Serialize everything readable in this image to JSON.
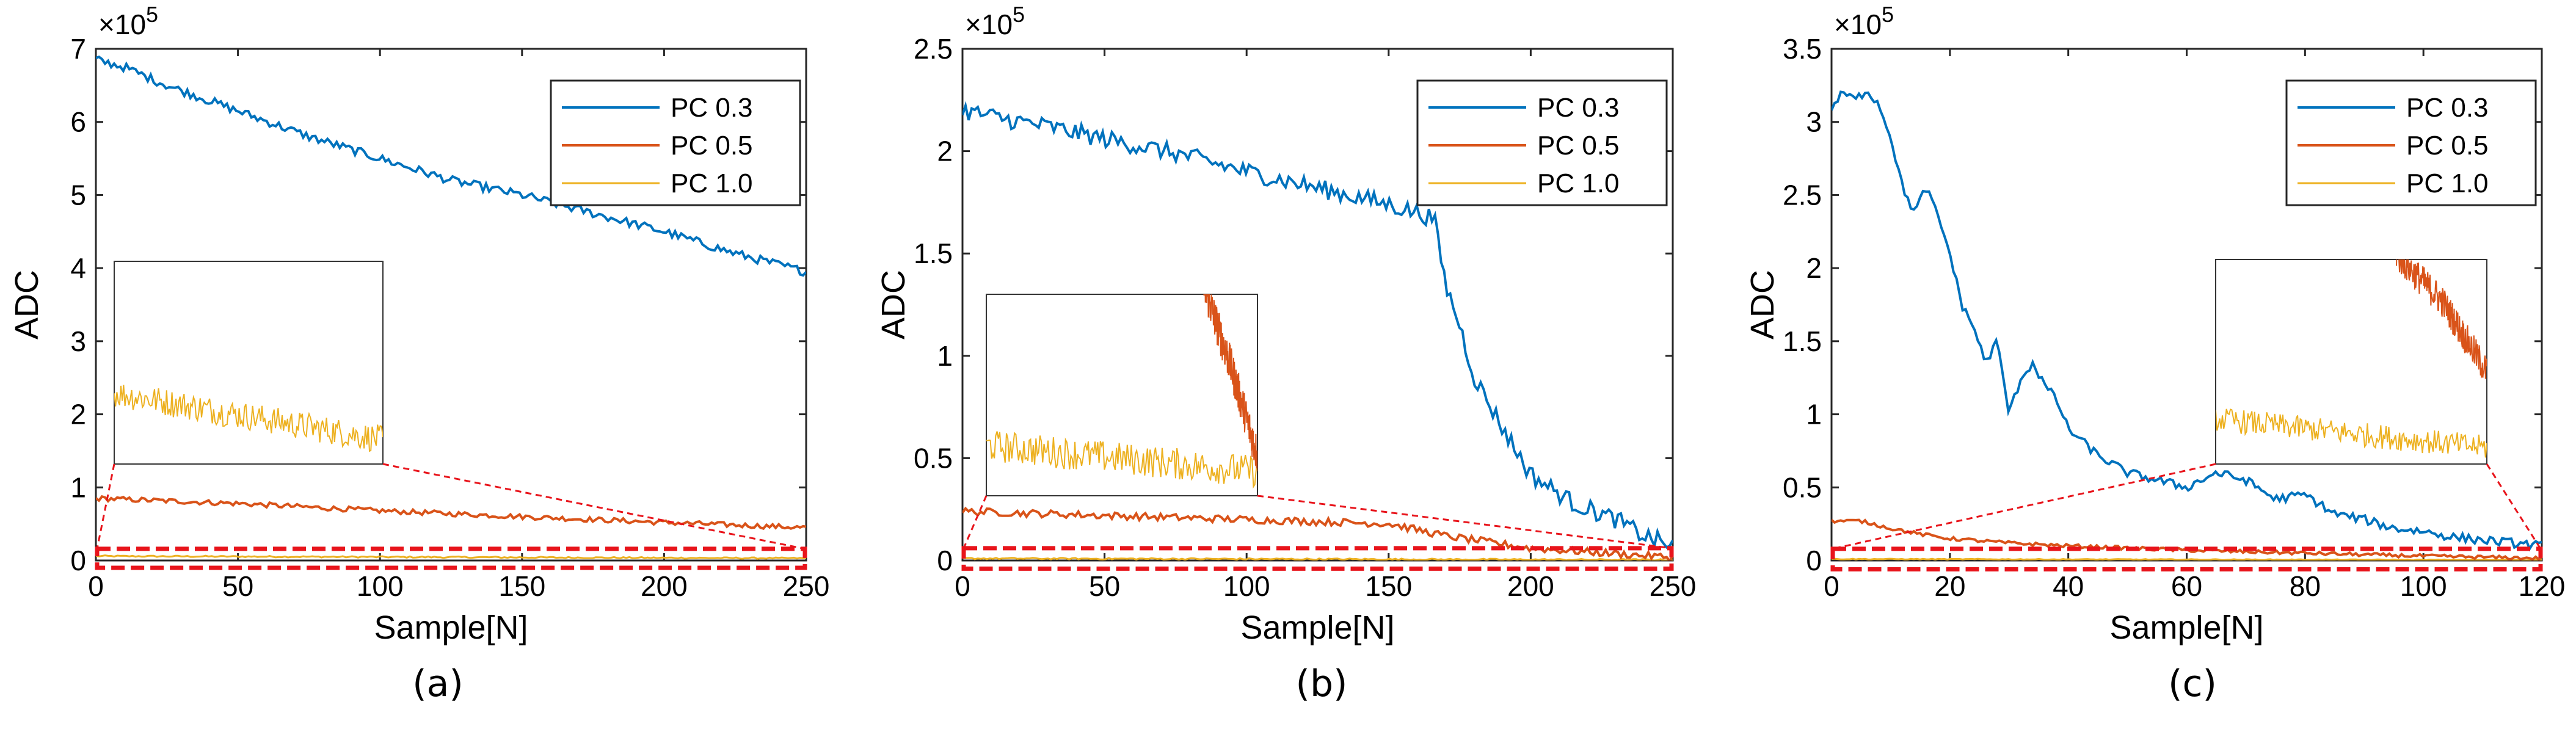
{
  "figure_title": "",
  "series_colors": {
    "PC 0.3": "#0072BD",
    "PC 0.5": "#D95319",
    "PC 1.0": "#EDB120"
  },
  "highlight_color": "#E8141B",
  "chart_data": [
    {
      "type": "line",
      "panel": "(a)",
      "xlabel": "Sample[N]",
      "ylabel": "ADC",
      "y_exponent_label": "×10",
      "y_exponent_power": "5",
      "xlim": [
        0,
        250
      ],
      "ylim": [
        0,
        7
      ],
      "xticks": [
        0,
        50,
        100,
        150,
        200,
        250
      ],
      "yticks": [
        0,
        1,
        2,
        3,
        4,
        5,
        6,
        7
      ],
      "xtick_labels": [
        "0",
        "50",
        "100",
        "150",
        "200",
        "250"
      ],
      "ytick_labels": [
        "0",
        "1",
        "2",
        "3",
        "4",
        "5",
        "6",
        "7"
      ],
      "legend": [
        "PC 0.3",
        "PC 0.5",
        "PC 1.0"
      ],
      "legend_position": "top-right",
      "series": [
        {
          "name": "PC 0.3",
          "x": [
            0,
            10,
            25,
            50,
            75,
            100,
            125,
            150,
            175,
            200,
            225,
            250
          ],
          "values": [
            6.85,
            6.75,
            6.5,
            6.15,
            5.8,
            5.5,
            5.2,
            5.0,
            4.75,
            4.5,
            4.2,
            3.95
          ],
          "noise": 0.06
        },
        {
          "name": "PC 0.5",
          "x": [
            0,
            50,
            100,
            150,
            200,
            250
          ],
          "values": [
            0.85,
            0.78,
            0.68,
            0.6,
            0.52,
            0.45
          ],
          "noise": 0.035
        },
        {
          "name": "PC 1.0",
          "x": [
            0,
            250
          ],
          "values": [
            0.06,
            0.03
          ],
          "noise": 0.01
        }
      ],
      "inset": {
        "label": "zoom of highlighted band",
        "xlim": [
          0,
          250
        ],
        "ylim": [
          0,
          1
        ],
        "series": [
          {
            "name": "PC 1.0",
            "x": [
              0,
              250
            ],
            "values": [
              0.35,
              0.12
            ],
            "noise": 0.07
          }
        ]
      },
      "highlight_band_y": [
        -0.1,
        0.16
      ]
    },
    {
      "type": "line",
      "panel": "(b)",
      "xlabel": "Sample[N]",
      "ylabel": "ADC",
      "y_exponent_label": "×10",
      "y_exponent_power": "5",
      "xlim": [
        0,
        250
      ],
      "ylim": [
        0,
        2.5
      ],
      "xticks": [
        0,
        50,
        100,
        150,
        200,
        250
      ],
      "yticks": [
        0,
        0.5,
        1,
        1.5,
        2,
        2.5
      ],
      "xtick_labels": [
        "0",
        "50",
        "100",
        "150",
        "200",
        "250"
      ],
      "ytick_labels": [
        "0",
        "0.5",
        "1",
        "1.5",
        "2",
        "2.5"
      ],
      "legend": [
        "PC 0.3",
        "PC 0.5",
        "PC 1.0"
      ],
      "legend_position": "top-right",
      "series": [
        {
          "name": "PC 0.3",
          "x": [
            0,
            10,
            30,
            50,
            75,
            100,
            125,
            150,
            160,
            166,
            170,
            175,
            180,
            190,
            200,
            215,
            230,
            240,
            250
          ],
          "values": [
            2.2,
            2.17,
            2.12,
            2.06,
            1.99,
            1.9,
            1.82,
            1.74,
            1.7,
            1.67,
            1.35,
            1.15,
            0.9,
            0.65,
            0.42,
            0.28,
            0.2,
            0.12,
            0.07
          ],
          "noise": 0.045
        },
        {
          "name": "PC 0.5",
          "x": [
            0,
            50,
            100,
            150,
            170,
            200,
            250
          ],
          "values": [
            0.24,
            0.22,
            0.2,
            0.18,
            0.12,
            0.06,
            0.015
          ],
          "noise": 0.018
        },
        {
          "name": "PC 1.0",
          "x": [
            0,
            250
          ],
          "values": [
            0.01,
            0.003
          ],
          "noise": 0.004
        }
      ],
      "inset": {
        "label": "zoom of highlighted band",
        "xlim": [
          0,
          250
        ],
        "ylim": [
          0,
          1
        ],
        "series": [
          {
            "name": "PC 1.0",
            "x": [
              0,
              250
            ],
            "values": [
              0.25,
              0.12
            ],
            "noise": 0.08
          },
          {
            "name": "PC 0.5",
            "x": [
              200,
              225,
              250
            ],
            "values": [
              1.05,
              0.65,
              0.2
            ],
            "noise": 0.1
          }
        ]
      },
      "highlight_band_y": [
        -0.04,
        0.06
      ]
    },
    {
      "type": "line",
      "panel": "(c)",
      "xlabel": "Sample[N]",
      "ylabel": "ADC",
      "y_exponent_label": "×10",
      "y_exponent_power": "5",
      "xlim": [
        0,
        120
      ],
      "ylim": [
        0,
        3.5
      ],
      "xticks": [
        0,
        20,
        40,
        60,
        80,
        100,
        120
      ],
      "yticks": [
        0,
        0.5,
        1,
        1.5,
        2,
        2.5,
        3,
        3.5
      ],
      "xtick_labels": [
        "0",
        "20",
        "40",
        "60",
        "80",
        "100",
        "120"
      ],
      "ytick_labels": [
        "0",
        "0.5",
        "1",
        "1.5",
        "2",
        "2.5",
        "3",
        "3.5"
      ],
      "legend": [
        "PC 0.3",
        "PC 0.5",
        "PC 1.0"
      ],
      "legend_position": "top-right",
      "series": [
        {
          "name": "PC 0.3",
          "x": [
            0,
            2,
            4,
            6,
            8,
            10,
            12,
            14,
            16,
            18,
            20,
            22,
            24,
            26,
            28,
            30,
            32,
            34,
            36,
            38,
            40,
            45,
            50,
            55,
            60,
            65,
            70,
            75,
            80,
            85,
            90,
            95,
            100,
            105,
            110,
            115,
            120
          ],
          "values": [
            3.1,
            3.2,
            3.15,
            3.22,
            3.12,
            2.9,
            2.55,
            2.38,
            2.55,
            2.35,
            2.1,
            1.75,
            1.6,
            1.35,
            1.5,
            1.0,
            1.25,
            1.35,
            1.2,
            1.1,
            0.9,
            0.72,
            0.6,
            0.55,
            0.5,
            0.6,
            0.55,
            0.42,
            0.45,
            0.32,
            0.28,
            0.22,
            0.2,
            0.16,
            0.14,
            0.12,
            0.1
          ],
          "noise": 0.03
        },
        {
          "name": "PC 0.5",
          "x": [
            0,
            5,
            10,
            15,
            20,
            30,
            40,
            60,
            80,
            100,
            120
          ],
          "values": [
            0.27,
            0.27,
            0.22,
            0.18,
            0.15,
            0.12,
            0.1,
            0.07,
            0.05,
            0.03,
            0.015
          ],
          "noise": 0.012
        },
        {
          "name": "PC 1.0",
          "x": [
            0,
            120
          ],
          "values": [
            0.01,
            0.003
          ],
          "noise": 0.003
        }
      ],
      "inset": {
        "label": "zoom of highlighted band",
        "xlim": [
          0,
          120
        ],
        "ylim": [
          0,
          1
        ],
        "series": [
          {
            "name": "PC 1.0",
            "x": [
              0,
              120
            ],
            "values": [
              0.22,
              0.08
            ],
            "noise": 0.06
          },
          {
            "name": "PC 0.5",
            "x": [
              80,
              100,
              120
            ],
            "values": [
              1.02,
              0.8,
              0.45
            ],
            "noise": 0.08
          }
        ]
      },
      "highlight_band_y": [
        -0.06,
        0.08
      ]
    }
  ]
}
